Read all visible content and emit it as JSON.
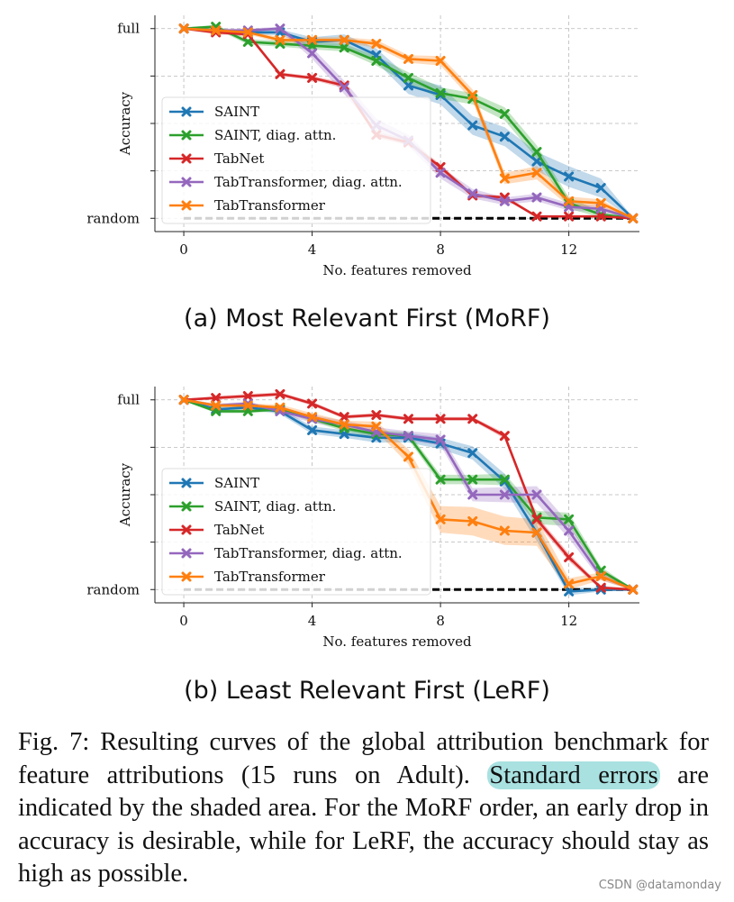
{
  "chart_data": [
    {
      "id": "morf",
      "type": "line",
      "subcaption": "(a) Most Relevant First (MoRF)",
      "xlabel": "No. features removed",
      "ylabel": "Accuracy",
      "xlim": [
        -0.9,
        14.2
      ],
      "ylim": [
        -0.07,
        1.07
      ],
      "xticks": [
        0,
        4,
        8,
        12
      ],
      "xtick_labels": [
        "0",
        "4",
        "8",
        "12"
      ],
      "yticks": [
        0,
        1
      ],
      "ytick_labels": [
        "random",
        "full"
      ],
      "minor_yticks": [
        0.25,
        0.5,
        0.75
      ],
      "grid": true,
      "legend_position": "middle-left",
      "baseline": {
        "y": 0,
        "style": "dashed",
        "color": "#000000"
      },
      "series": [
        {
          "name": "SAINT",
          "color": "#1f77b4",
          "x": [
            0,
            1,
            2,
            3,
            4,
            5,
            6,
            7,
            8,
            9,
            10,
            11,
            12,
            13,
            14
          ],
          "values": [
            1.0,
            0.99,
            0.98,
            0.98,
            0.93,
            0.94,
            0.86,
            0.7,
            0.65,
            0.49,
            0.43,
            0.3,
            0.22,
            0.16,
            0.0
          ],
          "err": [
            0.005,
            0.01,
            0.01,
            0.015,
            0.025,
            0.03,
            0.035,
            0.045,
            0.05,
            0.05,
            0.05,
            0.05,
            0.055,
            0.05,
            0.005
          ]
        },
        {
          "name": "SAINT, diag. attn.",
          "color": "#2ca02c",
          "x": [
            0,
            1,
            2,
            3,
            4,
            5,
            6,
            7,
            8,
            9,
            10,
            11,
            12,
            13,
            14
          ],
          "values": [
            1.0,
            1.01,
            0.93,
            0.92,
            0.91,
            0.9,
            0.83,
            0.74,
            0.66,
            0.63,
            0.55,
            0.35,
            0.08,
            0.02,
            0.0
          ],
          "err": [
            0.005,
            0.01,
            0.015,
            0.015,
            0.02,
            0.02,
            0.025,
            0.03,
            0.03,
            0.03,
            0.035,
            0.035,
            0.03,
            0.015,
            0.005
          ]
        },
        {
          "name": "TabNet",
          "color": "#d62728",
          "x": [
            0,
            1,
            2,
            3,
            4,
            5,
            6,
            7,
            8,
            9,
            10,
            11,
            12,
            13,
            14
          ],
          "values": [
            1.0,
            0.98,
            0.97,
            0.76,
            0.74,
            0.7,
            0.44,
            0.4,
            0.27,
            0.12,
            0.11,
            0.01,
            0.01,
            0.01,
            0.0
          ],
          "err": [
            0.005,
            0.01,
            0.01,
            0.01,
            0.01,
            0.015,
            0.015,
            0.015,
            0.015,
            0.01,
            0.01,
            0.005,
            0.005,
            0.005,
            0.005
          ]
        },
        {
          "name": "TabTransformer, diag. attn.",
          "color": "#9467bd",
          "x": [
            0,
            1,
            2,
            3,
            4,
            5,
            6,
            7,
            8,
            9,
            10,
            11,
            12,
            13,
            14
          ],
          "values": [
            1.0,
            0.99,
            0.99,
            1.0,
            0.87,
            0.69,
            0.49,
            0.41,
            0.24,
            0.13,
            0.09,
            0.11,
            0.06,
            0.05,
            0.0
          ],
          "err": [
            0.005,
            0.01,
            0.01,
            0.01,
            0.03,
            0.035,
            0.035,
            0.03,
            0.03,
            0.025,
            0.02,
            0.02,
            0.02,
            0.015,
            0.005
          ]
        },
        {
          "name": "TabTransformer",
          "color": "#ff7f0e",
          "x": [
            0,
            1,
            2,
            3,
            4,
            5,
            6,
            7,
            8,
            9,
            10,
            11,
            12,
            13,
            14
          ],
          "values": [
            1.0,
            0.99,
            0.98,
            0.94,
            0.94,
            0.94,
            0.92,
            0.84,
            0.83,
            0.65,
            0.21,
            0.24,
            0.09,
            0.08,
            0.0
          ],
          "err": [
            0.005,
            0.01,
            0.01,
            0.015,
            0.015,
            0.015,
            0.02,
            0.02,
            0.025,
            0.03,
            0.03,
            0.035,
            0.025,
            0.02,
            0.005
          ]
        }
      ]
    },
    {
      "id": "lerf",
      "type": "line",
      "subcaption": "(b) Least Relevant First (LeRF)",
      "xlabel": "No. features removed",
      "ylabel": "Accuracy",
      "xlim": [
        -0.9,
        14.2
      ],
      "ylim": [
        -0.07,
        1.07
      ],
      "xticks": [
        0,
        4,
        8,
        12
      ],
      "xtick_labels": [
        "0",
        "4",
        "8",
        "12"
      ],
      "yticks": [
        0,
        1
      ],
      "ytick_labels": [
        "random",
        "full"
      ],
      "minor_yticks": [
        0.25,
        0.5,
        0.75
      ],
      "grid": true,
      "legend_position": "lower-left",
      "baseline": {
        "y": 0,
        "style": "dashed",
        "color": "#000000"
      },
      "series": [
        {
          "name": "SAINT",
          "color": "#1f77b4",
          "x": [
            0,
            1,
            2,
            3,
            4,
            5,
            6,
            7,
            8,
            9,
            10,
            11,
            12,
            13,
            14
          ],
          "values": [
            1.0,
            0.95,
            0.96,
            0.94,
            0.84,
            0.82,
            0.8,
            0.8,
            0.77,
            0.72,
            0.57,
            0.3,
            -0.01,
            0.0,
            0.0
          ],
          "err": [
            0.005,
            0.01,
            0.01,
            0.015,
            0.02,
            0.02,
            0.025,
            0.025,
            0.03,
            0.035,
            0.04,
            0.045,
            0.02,
            0.01,
            0.005
          ]
        },
        {
          "name": "SAINT, diag. attn.",
          "color": "#2ca02c",
          "x": [
            0,
            1,
            2,
            3,
            4,
            5,
            6,
            7,
            8,
            9,
            10,
            11,
            12,
            13,
            14
          ],
          "values": [
            1.0,
            0.94,
            0.94,
            0.95,
            0.9,
            0.85,
            0.82,
            0.81,
            0.58,
            0.58,
            0.58,
            0.38,
            0.37,
            0.1,
            0.0
          ],
          "err": [
            0.005,
            0.01,
            0.01,
            0.01,
            0.015,
            0.015,
            0.02,
            0.02,
            0.025,
            0.025,
            0.03,
            0.035,
            0.035,
            0.02,
            0.005
          ]
        },
        {
          "name": "TabNet",
          "color": "#d62728",
          "x": [
            0,
            1,
            2,
            3,
            4,
            5,
            6,
            7,
            8,
            9,
            10,
            11,
            12,
            13,
            14
          ],
          "values": [
            1.0,
            1.01,
            1.02,
            1.03,
            0.98,
            0.91,
            0.92,
            0.9,
            0.9,
            0.9,
            0.81,
            0.37,
            0.17,
            0.01,
            0.0
          ],
          "err": [
            0.005,
            0.01,
            0.01,
            0.01,
            0.01,
            0.01,
            0.01,
            0.01,
            0.01,
            0.01,
            0.015,
            0.02,
            0.02,
            0.01,
            0.005
          ]
        },
        {
          "name": "TabTransformer, diag. attn.",
          "color": "#9467bd",
          "x": [
            0,
            1,
            2,
            3,
            4,
            5,
            6,
            7,
            8,
            9,
            10,
            11,
            12,
            13,
            14
          ],
          "values": [
            1.0,
            0.97,
            0.98,
            0.94,
            0.9,
            0.87,
            0.83,
            0.81,
            0.79,
            0.5,
            0.5,
            0.5,
            0.31,
            0.07,
            0.0
          ],
          "err": [
            0.005,
            0.01,
            0.01,
            0.015,
            0.02,
            0.02,
            0.025,
            0.025,
            0.03,
            0.035,
            0.04,
            0.045,
            0.04,
            0.02,
            0.005
          ]
        },
        {
          "name": "TabTransformer",
          "color": "#ff7f0e",
          "x": [
            0,
            1,
            2,
            3,
            4,
            5,
            6,
            7,
            8,
            9,
            10,
            11,
            12,
            13,
            14
          ],
          "values": [
            1.0,
            0.97,
            0.97,
            0.96,
            0.91,
            0.87,
            0.86,
            0.7,
            0.37,
            0.36,
            0.31,
            0.3,
            0.03,
            0.07,
            0.0
          ],
          "err": [
            0.005,
            0.01,
            0.01,
            0.015,
            0.02,
            0.02,
            0.025,
            0.04,
            0.07,
            0.075,
            0.075,
            0.07,
            0.03,
            0.02,
            0.005
          ]
        }
      ]
    }
  ],
  "caption": {
    "label": "Fig. 7:",
    "text_before": " Resulting curves of the global attribution benchmark for feature attributions (15 runs on Adult). ",
    "highlight": "Standard errors",
    "text_after": " are indicated by the shaded area. For the MoRF order, an early drop in accuracy is desirable, while for LeRF, the accuracy should stay as high as possible."
  },
  "watermark": "CSDN @datamonday"
}
